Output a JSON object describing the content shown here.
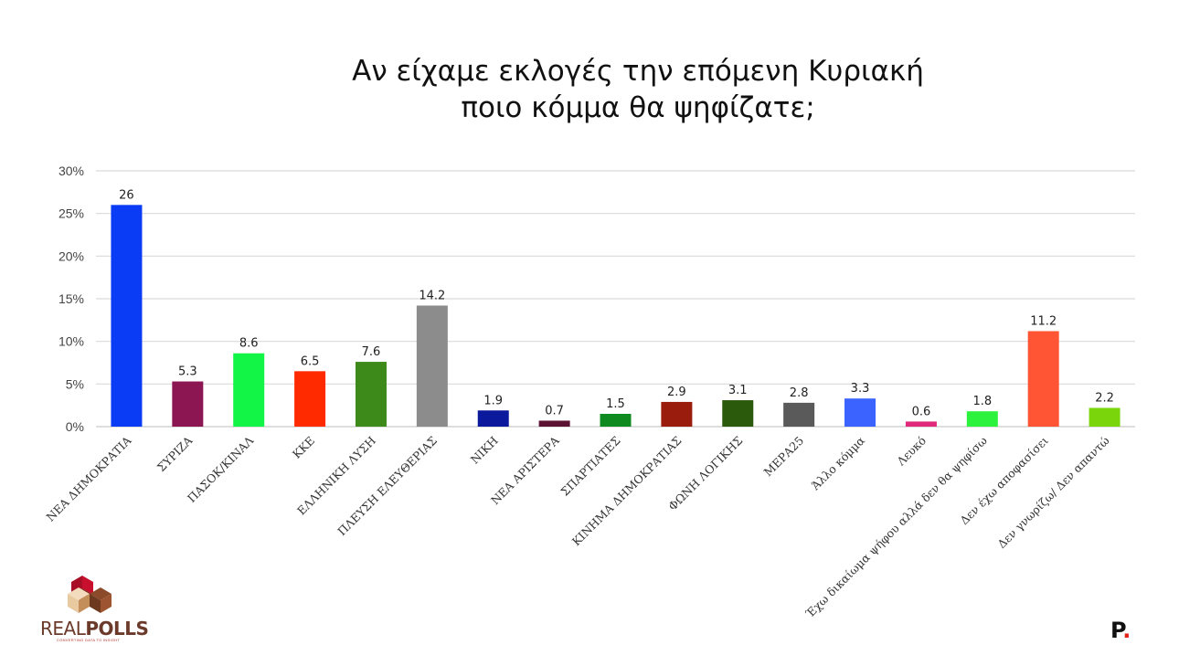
{
  "chart_data": {
    "type": "bar",
    "title": [
      "Αν είχαμε εκλογές την επόμενη Κυριακή",
      "ποιο κόμμα θα ψηφίζατε;"
    ],
    "categories": [
      "ΝΕΑ ΔΗΜΟΚΡΑΤΙΑ",
      "ΣΥΡΙΖΑ",
      "ΠΑΣΟΚ/ΚΙΝΑΛ",
      "ΚΚΕ",
      "ΕΛΛΗΝΙΚΗ ΛΥΣΗ",
      "ΠΛΕΥΣΗ ΕΛΕΥΘΕΡΙΑΣ",
      "ΝΙΚΗ",
      "ΝΕΑ ΑΡΙΣΤΕΡΑ",
      "ΣΠΑΡΤΙΑΤΕΣ",
      "ΚΙΝΗΜΑ ΔΗΜΟΚΡΑΤΙΑΣ",
      "ΦΩΝΗ ΛΟΓΙΚΗΣ",
      "ΜΕΡΑ25",
      "Άλλο κόμμα",
      "Λευκό",
      "Έχω δικαίωμα ψήφου αλλά δεν θα ψηφίσω",
      "Δεν έχω αποφασίσει",
      "Δεν γνωρίζω/ Δεν απαντώ"
    ],
    "values": [
      26,
      5.3,
      8.6,
      6.5,
      7.6,
      14.2,
      1.9,
      0.7,
      1.5,
      2.9,
      3.1,
      2.8,
      3.3,
      0.6,
      1.8,
      11.2,
      2.2
    ],
    "value_labels": [
      "26",
      "5.3",
      "8.6",
      "6.5",
      "7.6",
      "14.2",
      "1.9",
      "0.7",
      "1.5",
      "2.9",
      "3.1",
      "2.8",
      "3.3",
      "0.6",
      "1.8",
      "11.2",
      "2.2"
    ],
    "colors": [
      "#0b3cf5",
      "#8c1652",
      "#12f446",
      "#ff2a00",
      "#3d8a1a",
      "#8c8c8c",
      "#0b1a9c",
      "#5c1232",
      "#0f8a1e",
      "#9a1c0c",
      "#2c5a0c",
      "#5a5a5a",
      "#3a63ff",
      "#e0297a",
      "#2cf23e",
      "#ff5535",
      "#7ad60a"
    ],
    "yticks": [
      "0%",
      "5%",
      "10%",
      "15%",
      "20%",
      "25%",
      "30%"
    ],
    "ylim": [
      0,
      30
    ],
    "grid": true,
    "legend": "none"
  },
  "branding": {
    "realpolls": {
      "light": "REAL",
      "bold": "POLLS",
      "tagline": "CONVERTING DATA TO INSIGHT"
    },
    "p_logo": {
      "letter": "P",
      "dot": "."
    }
  }
}
